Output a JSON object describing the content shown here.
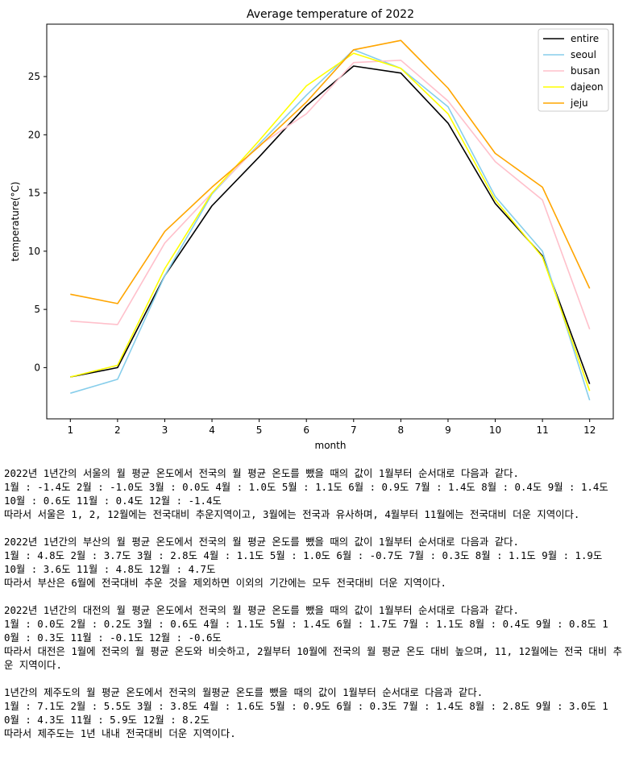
{
  "chart_data": {
    "type": "line",
    "title": "Average temperature of 2022",
    "xlabel": "month",
    "ylabel": "temperature(°C)",
    "x": [
      1,
      2,
      3,
      4,
      5,
      6,
      7,
      8,
      9,
      10,
      11,
      12
    ],
    "xlim": [
      0.5,
      12.5
    ],
    "ylim": [
      -4.4,
      29.5
    ],
    "xticks": [
      1,
      2,
      3,
      4,
      5,
      6,
      7,
      8,
      9,
      10,
      11,
      12
    ],
    "yticks": [
      0,
      5,
      10,
      15,
      20,
      25
    ],
    "legend_position": "top-right",
    "grid": false,
    "series": [
      {
        "name": "entire",
        "color": "#000000",
        "values": [
          -0.8,
          0.0,
          7.9,
          13.9,
          18.1,
          22.5,
          25.9,
          25.3,
          21.0,
          14.1,
          9.6,
          -1.4
        ]
      },
      {
        "name": "seoul",
        "color": "#87ceeb",
        "values": [
          -2.2,
          -1.0,
          7.9,
          14.9,
          19.2,
          23.4,
          27.3,
          25.7,
          22.4,
          14.7,
          10.0,
          -2.8
        ]
      },
      {
        "name": "busan",
        "color": "#ffc0cb",
        "values": [
          4.0,
          3.7,
          10.7,
          15.0,
          19.1,
          21.8,
          26.2,
          26.4,
          22.9,
          17.7,
          14.4,
          3.3
        ]
      },
      {
        "name": "dajeon",
        "color": "#ffff00",
        "values": [
          -0.8,
          0.2,
          8.5,
          15.0,
          19.5,
          24.2,
          27.0,
          25.7,
          21.8,
          14.4,
          9.5,
          -2.0
        ]
      },
      {
        "name": "jeju",
        "color": "#ffa500",
        "values": [
          6.3,
          5.5,
          11.7,
          15.5,
          19.0,
          22.8,
          27.3,
          28.1,
          24.0,
          18.4,
          15.5,
          6.8
        ]
      }
    ]
  },
  "notes": [
    {
      "lines": [
        "2022년 1년간의 서울의 월 평균 온도에서 전국의 월 평균 온도를 뺐을 때의 값이 1월부터 순서대로 다음과 같다.",
        "1월 : -1.4도 2월 : -1.0도 3월 : 0.0도 4월 : 1.0도 5월 : 1.1도 6월 : 0.9도 7월 : 1.4도 8월 : 0.4도 9월 : 1.4도",
        "10월 : 0.6도 11월 : 0.4도 12월 : -1.4도"
      ],
      "conclusion": "따라서 서울은 1, 2, 12월에는 전국대비 추운지역이고, 3월에는 전국과 유사하며, 4월부터 11월에는 전국대비 더운 지역이다."
    },
    {
      "lines": [
        "2022년 1년간의 부산의 월 평균 온도에서 전국의 월 평균 온도를 뺐을 때의 값이 1월부터 순서대로 다음과 같다.",
        "1월 : 4.8도 2월 : 3.7도 3월 : 2.8도 4월 : 1.1도 5월 : 1.0도 6월 : -0.7도 7월 : 0.3도 8월 : 1.1도 9월 : 1.9도",
        "10월 : 3.6도 11월 : 4.8도 12월 : 4.7도"
      ],
      "conclusion": "따라서 부산은 6월에 전국대비 추운 것을 제외하면 이외의 기간에는 모두 전국대비 더운 지역이다."
    },
    {
      "lines": [
        "2022년 1년간의 대전의 월 평균 온도에서 전국의 월 평균 온도를 뺐을 때의 값이 1월부터 순서대로 다음과 같다.",
        "1월 : 0.0도 2월 : 0.2도 3월 : 0.6도 4월 : 1.1도 5월 : 1.4도 6월 : 1.7도 7월 : 1.1도 8월 : 0.4도 9월 : 0.8도 1",
        "0월 : 0.3도 11월 : -0.1도 12월 : -0.6도"
      ],
      "conclusion": "따라서 대전은 1월에 전국의 월 평균 온도와 비슷하고, 2월부터 10월에 전국의 월 평균 온도 대비 높으며, 11, 12월에는 전국 대비 추운 지역이다."
    },
    {
      "lines": [
        "1년간의 제주도의 월 평균 온도에서 전국의 월평균 온도를 뺐을 때의 값이 1월부터 순서대로 다음과 같다.",
        "1월 : 7.1도 2월 : 5.5도 3월 : 3.8도 4월 : 1.6도 5월 : 0.9도 6월 : 0.3도 7월 : 1.4도 8월 : 2.8도 9월 : 3.0도 1",
        "0월 : 4.3도 11월 : 5.9도 12월 : 8.2도"
      ],
      "conclusion": "따라서 제주도는 1년 내내 전국대비 더운 지역이다."
    }
  ]
}
